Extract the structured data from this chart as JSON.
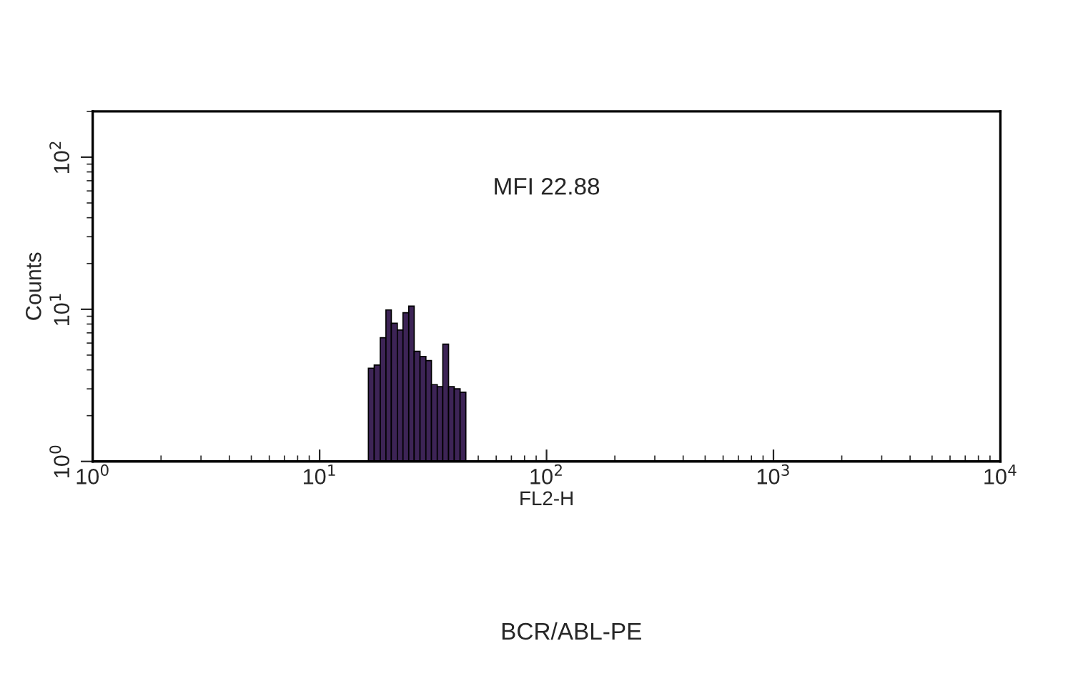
{
  "chart_data": {
    "type": "histogram",
    "xlabel": "FL2-H",
    "ylabel": "Counts",
    "annotations": [
      "MFI 22.88",
      "BCR/ABL-PE"
    ],
    "bins": [
      16.4,
      17.4,
      18.5,
      19.6,
      20.7,
      22.0,
      23.3,
      24.7,
      26.1,
      27.7,
      29.4,
      31.1,
      33.0,
      34.9,
      37.0,
      39.2,
      41.6,
      44.1
    ],
    "values": [
      4.1,
      4.3,
      6.5,
      9.9,
      8.1,
      7.3,
      9.5,
      10.5,
      5.3,
      4.9,
      4.6,
      3.2,
      3.1,
      5.9,
      3.1,
      3.0,
      2.85
    ],
    "color": "#3d2456",
    "log": "xy",
    "xlim": [
      1,
      10000
    ],
    "ylim": [
      1,
      200
    ],
    "xticks": [
      {
        "value": 1,
        "label": "10$^{0}$"
      },
      {
        "value": 10,
        "label": "10$^{1}$"
      },
      {
        "value": 100,
        "label": "10$^{2}$"
      },
      {
        "value": 1000,
        "label": "10$^{3}$"
      },
      {
        "value": 10000,
        "label": "10$^{4}$"
      }
    ],
    "yticks": [
      {
        "value": 1,
        "label": "10$^{0}$"
      },
      {
        "value": 10,
        "label": "10$^{1}$"
      },
      {
        "value": 100,
        "label": "10$^{2}$"
      }
    ],
    "grid": false
  }
}
